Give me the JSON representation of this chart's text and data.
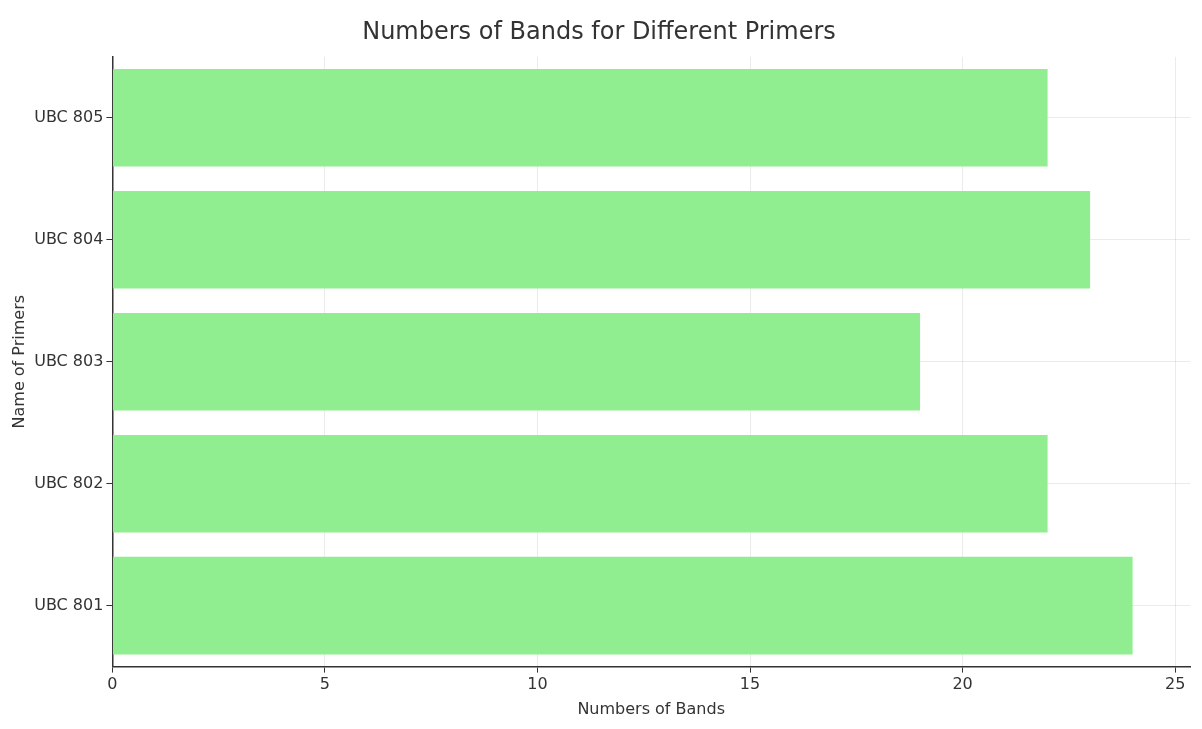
{
  "chart_data": {
    "type": "bar",
    "orientation": "horizontal",
    "title": "Numbers of Bands for Different Primers",
    "xlabel": "Numbers of Bands",
    "ylabel": "Name of Primers",
    "categories": [
      "UBC 805",
      "UBC 804",
      "UBC 803",
      "UBC 802",
      "UBC 801"
    ],
    "values": [
      22,
      23,
      19,
      22,
      24
    ],
    "color": "#90ee90",
    "xlim": [
      0,
      25.35
    ],
    "xticks": [
      0,
      5,
      10,
      15,
      20,
      25
    ],
    "grid": true,
    "legend": false
  }
}
